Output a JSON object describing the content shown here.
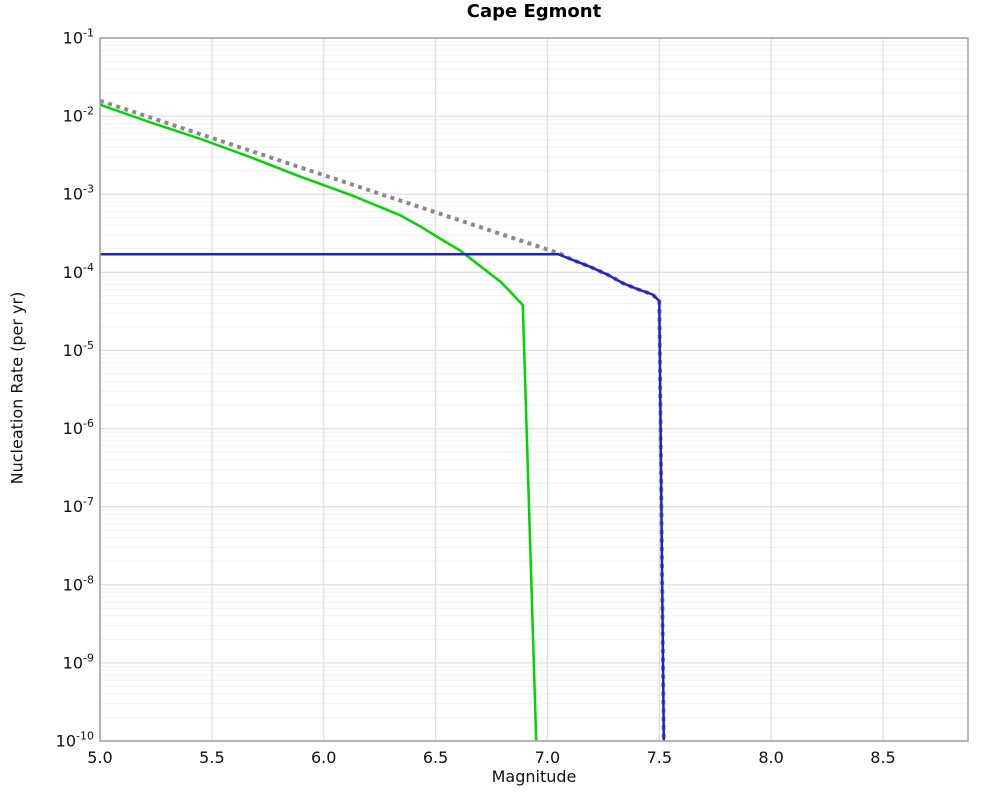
{
  "chart_data": {
    "type": "line",
    "title": "Cape Egmont",
    "xlabel": "Magnitude",
    "ylabel": "Nucleation Rate (per yr)",
    "x_range": [
      5.0,
      8.88
    ],
    "y_scale": "log",
    "y_range": [
      1e-10,
      0.1
    ],
    "grid": {
      "x_major": true,
      "y_major": true,
      "y_minor": true
    },
    "legend": "none",
    "x_tick_labels": [
      "5.0",
      "5.5",
      "6.0",
      "6.5",
      "7.0",
      "7.5",
      "8.0",
      "8.5"
    ],
    "y_tick_exponents": [
      -1,
      -2,
      -3,
      -4,
      -5,
      -6,
      -7,
      -8,
      -9,
      -10
    ],
    "series": [
      {
        "name": "tapered-green-curve",
        "style": "solid",
        "color": "#00d500",
        "points": [
          [
            5.0,
            0.014
          ],
          [
            5.22,
            0.0084
          ],
          [
            5.45,
            0.0051
          ],
          [
            5.67,
            0.003
          ],
          [
            5.89,
            0.0017
          ],
          [
            6.12,
            0.00098
          ],
          [
            6.34,
            0.00054
          ],
          [
            6.43,
            0.00039
          ],
          [
            6.52,
            0.00027
          ],
          [
            6.61,
            0.00019
          ],
          [
            6.7,
            0.00012
          ],
          [
            6.79,
            7.6e-05
          ],
          [
            6.83,
            5.8e-05
          ],
          [
            6.89,
            3.8e-05
          ],
          [
            6.95,
            1e-10
          ]
        ]
      },
      {
        "name": "gutenberg-richter-dotted",
        "style": "dotted",
        "color": "#8a8a8a",
        "points": [
          [
            5.0,
            0.0157
          ],
          [
            7.06,
            0.000172
          ],
          [
            7.11,
            0.000145
          ],
          [
            7.19,
            0.000118
          ],
          [
            7.27,
            9.3e-05
          ],
          [
            7.34,
            7.2e-05
          ],
          [
            7.41,
            6e-05
          ],
          [
            7.47,
            5.2e-05
          ],
          [
            7.5,
            4.3e-05
          ],
          [
            7.52,
            1e-10
          ]
        ]
      },
      {
        "name": "characteristic-blue-curve",
        "style": "solid",
        "color": "#2222cc",
        "points": [
          [
            5.0,
            0.00017
          ],
          [
            7.05,
            0.00017
          ],
          [
            7.11,
            0.000145
          ],
          [
            7.19,
            0.000118
          ],
          [
            7.27,
            9.3e-05
          ],
          [
            7.34,
            7.2e-05
          ],
          [
            7.41,
            6e-05
          ],
          [
            7.47,
            5.2e-05
          ],
          [
            7.5,
            4.3e-05
          ],
          [
            7.52,
            1e-10
          ]
        ]
      }
    ],
    "style_colors": {
      "grid_major": "#e0e0e0",
      "grid_minor": "#f2f2f2",
      "spine": "#a6a6a6",
      "text": "#111111"
    }
  }
}
